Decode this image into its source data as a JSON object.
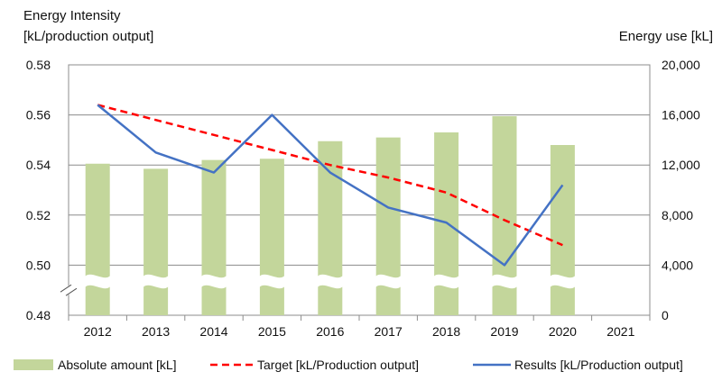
{
  "chart_data": {
    "type": "bar",
    "categories": [
      "2012",
      "2013",
      "2014",
      "2015",
      "2016",
      "2017",
      "2018",
      "2019",
      "2020",
      "2021"
    ],
    "left_axis": {
      "title_line1": "Energy Intensity",
      "title_line2": "[kL/production output]",
      "ticks": [
        "0.58",
        "0.56",
        "0.54",
        "0.52",
        "0.50",
        "0.48"
      ],
      "tick_values": [
        0.58,
        0.56,
        0.54,
        0.52,
        0.5,
        0.48
      ],
      "ylim": [
        0.48,
        0.58
      ],
      "axis_break_between": [
        0.48,
        0.5
      ]
    },
    "right_axis": {
      "title": "Energy use [kL]",
      "ticks": [
        "20,000",
        "16,000",
        "12,000",
        "8,000",
        "4,000",
        "0"
      ],
      "tick_values": [
        20000,
        16000,
        12000,
        8000,
        4000,
        0
      ],
      "ylim": [
        0,
        20000
      ]
    },
    "series": [
      {
        "name": "Absolute amount [kL]",
        "type": "bar",
        "axis": "right",
        "color": "#c3d69b",
        "values": [
          12100,
          11700,
          12400,
          12500,
          13900,
          14200,
          14600,
          15900,
          13600,
          null
        ]
      },
      {
        "name": "Target [kL/Production output]",
        "type": "line",
        "style": "dashed",
        "axis": "left",
        "color": "#ff0000",
        "values": [
          0.564,
          0.558,
          0.552,
          0.546,
          0.54,
          0.535,
          0.529,
          0.518,
          0.508,
          null
        ]
      },
      {
        "name": "Results [kL/Production output]",
        "type": "line",
        "style": "solid",
        "axis": "left",
        "color": "#4472c4",
        "values": [
          0.564,
          0.545,
          0.537,
          0.56,
          0.537,
          0.523,
          0.517,
          0.5,
          0.532,
          null
        ]
      }
    ],
    "grid": true,
    "legend_position": "bottom",
    "bars_have_axis_break": true
  }
}
